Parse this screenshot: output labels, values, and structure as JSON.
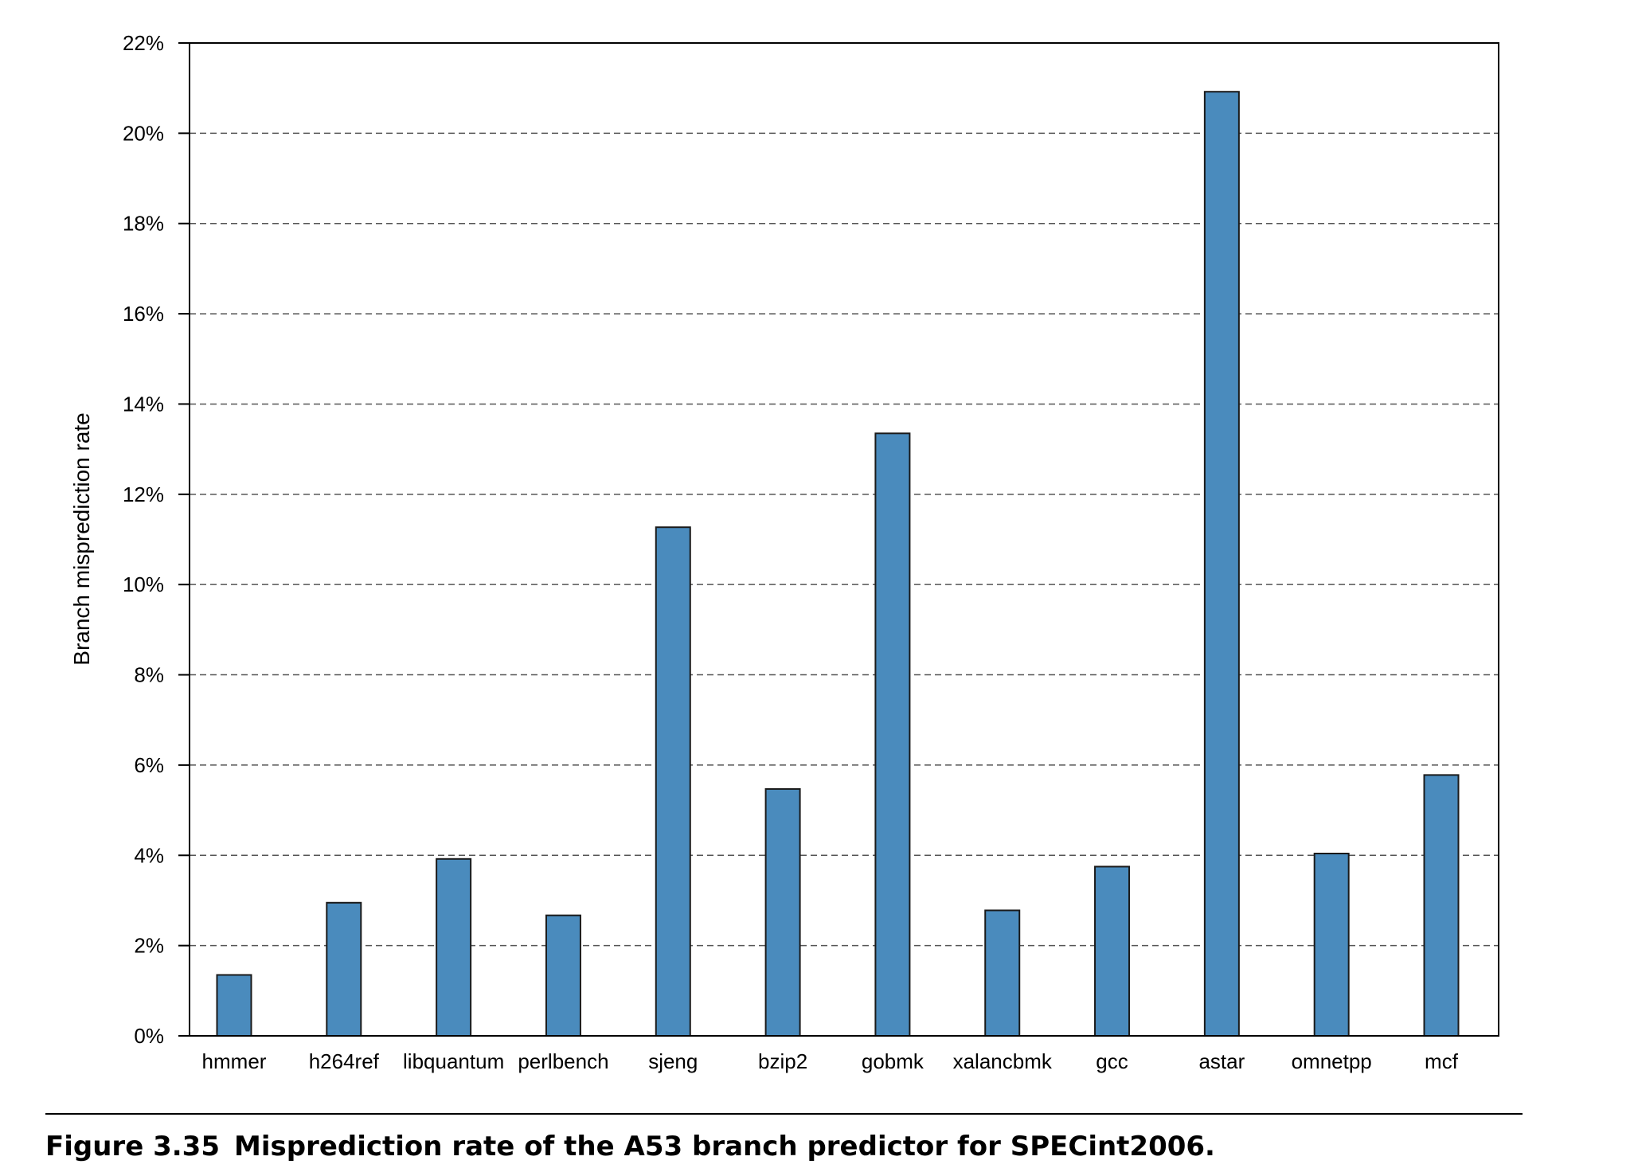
{
  "chart_data": {
    "type": "bar",
    "categories": [
      "hmmer",
      "h264ref",
      "libquantum",
      "perlbench",
      "sjeng",
      "bzip2",
      "gobmk",
      "xalancbmk",
      "gcc",
      "astar",
      "omnetpp",
      "mcf"
    ],
    "values": [
      1.35,
      2.95,
      3.92,
      2.67,
      11.27,
      5.47,
      13.35,
      2.78,
      3.75,
      20.92,
      4.04,
      5.78
    ],
    "ylabel": "Branch misprediction rate",
    "xlabel": "",
    "ylim": [
      0,
      22
    ],
    "yticks": [
      0,
      2,
      4,
      6,
      8,
      10,
      12,
      14,
      16,
      18,
      20,
      22
    ],
    "tick_suffix": "%",
    "grid": "horizontal dashed",
    "bar_color": "#4a8bbd"
  },
  "caption": {
    "number": "Figure 3.35",
    "text": "Misprediction rate of the A53 branch predictor for SPECint2006."
  }
}
